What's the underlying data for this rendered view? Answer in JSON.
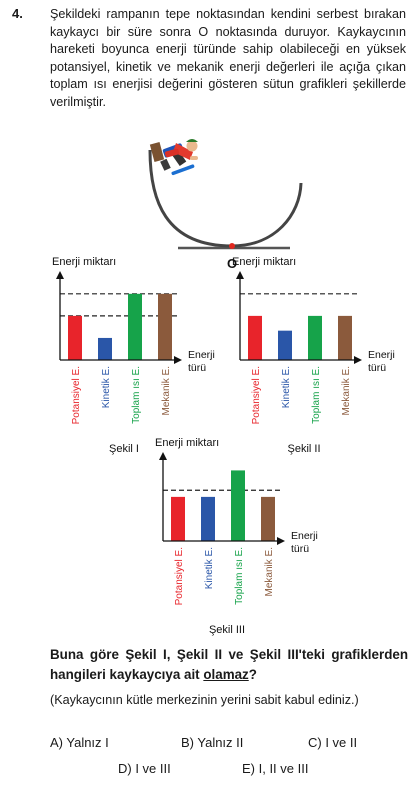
{
  "question": {
    "number": "4.",
    "text": "Şekildeki rampanın tepe noktasından kendini serbest bırakan kaykaycı bir süre sonra O noktasında duruyor. Kaykaycının hareketi boyunca enerji türünde sahip olabileceği en yüksek potansiyel, kinetik ve mekanik enerji değerleri ile açığa çıkan toplam ısı enerjisi değerini gösteren sütun grafikleri şekillerde verilmiştir."
  },
  "ramp": {
    "point_label": "O",
    "colors": {
      "track": "#444444",
      "ground": "#555555",
      "point": "#e0281f"
    }
  },
  "colors": {
    "potansiyel": "#e8242b",
    "kinetik": "#2a56a8",
    "isi": "#16a34a",
    "mekanik": "#8b5a3c",
    "dash": "#222222"
  },
  "chart_data": [
    {
      "type": "bar",
      "title": "Şekil I",
      "ylabel": "Enerji miktarı",
      "xlabel_line1": "Enerji",
      "xlabel_line2": "türü",
      "categories": [
        "Potansiyel E.",
        "Kinetik E.",
        "Toplam ısı E.",
        "Mekanik E."
      ],
      "values": [
        2,
        1,
        3,
        3
      ],
      "reference_lines": [
        3,
        2
      ],
      "ylim": [
        0,
        3.4
      ]
    },
    {
      "type": "bar",
      "title": "Şekil II",
      "ylabel": "Enerji miktarı",
      "xlabel_line1": "Enerji",
      "xlabel_line2": "türü",
      "categories": [
        "Potansiyel E.",
        "Kinetik E.",
        "Toplam ısı E.",
        "Mekanik E."
      ],
      "values": [
        2,
        1.33,
        2,
        2
      ],
      "reference_lines": [
        3
      ],
      "ylim": [
        0,
        3.4
      ]
    },
    {
      "type": "bar",
      "title": "Şekil III",
      "ylabel": "Enerji miktarı",
      "xlabel_line1": "Enerji",
      "xlabel_line2": "türü",
      "categories": [
        "Potansiyel E.",
        "Kinetik E.",
        "Toplam ısı E.",
        "Mekanik E."
      ],
      "values": [
        2,
        2,
        3.2,
        2
      ],
      "reference_lines": [
        2.3
      ],
      "ylim": [
        0,
        3.4
      ]
    }
  ],
  "prompt": {
    "part1": "Buna göre Şekil I, Şekil II ve Şekil III'teki grafiklerden hangileri kaykaycıya ait ",
    "emph": "olamaz",
    "part2": "?",
    "note": "(Kaykaycının kütle merkezinin yerini sabit kabul ediniz.)"
  },
  "options": {
    "a": "A) Yalnız I",
    "b": "B) Yalnız II",
    "c": "C) I ve II",
    "d": "D) I ve III",
    "e": "E) I, II ve III"
  }
}
